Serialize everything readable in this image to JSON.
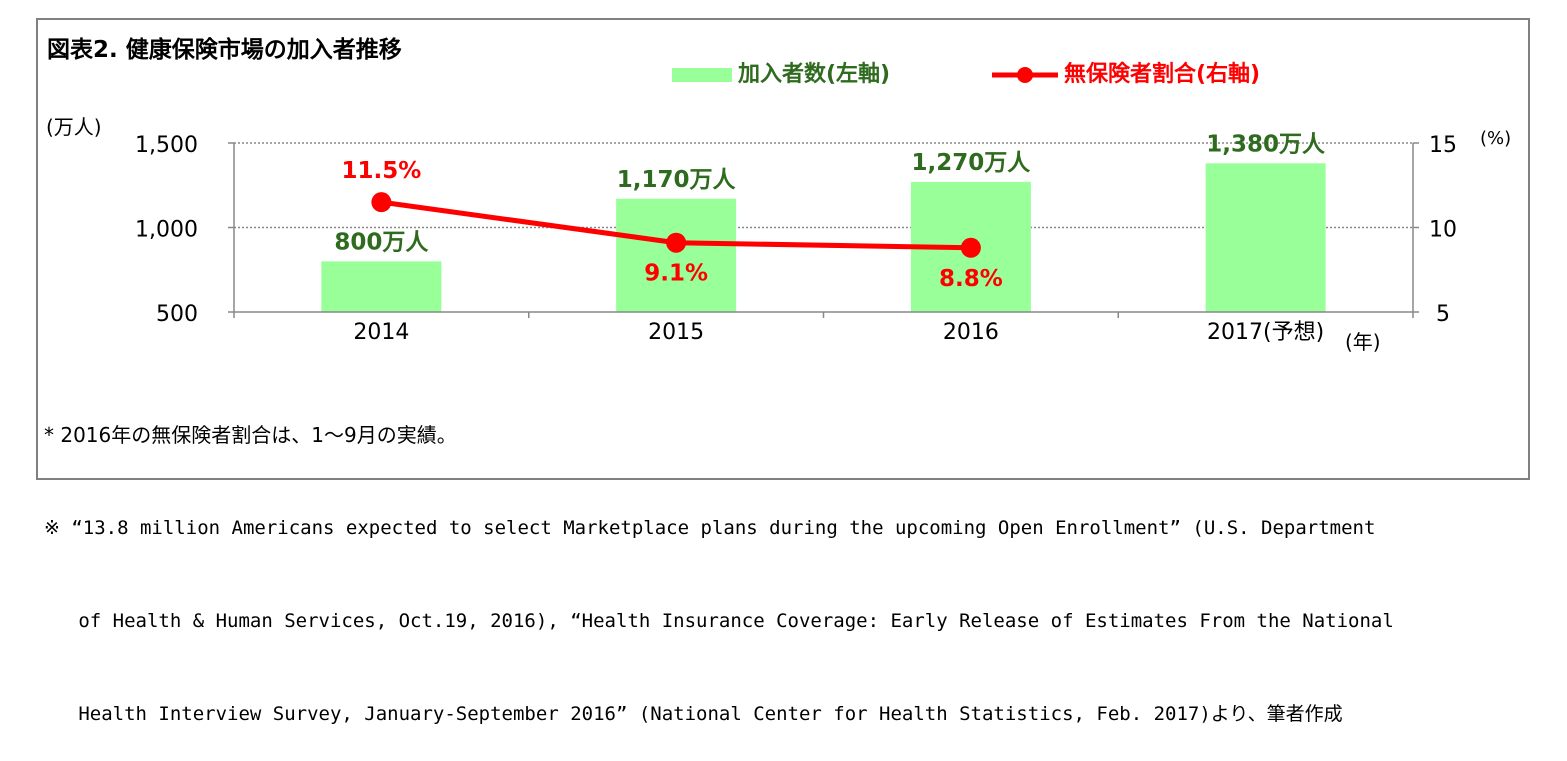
{
  "title": "図表2. 健康保険市場の加入者推移",
  "legend": [
    {
      "label": "加入者数(左軸)",
      "color": "#99ff99",
      "type": "bar"
    },
    {
      "label": "無保険者割合(右軸)",
      "color": "#ff0000",
      "type": "line"
    }
  ],
  "chart_data": {
    "type": "bar+line",
    "categories": [
      "2014",
      "2015",
      "2016",
      "2017(予想)"
    ],
    "x_unit": "(年)",
    "series": [
      {
        "name": "加入者数(左軸)",
        "type": "bar",
        "axis": "left",
        "values": [
          800,
          1170,
          1270,
          1380
        ],
        "labels": [
          "800万人",
          "1,170万人",
          "1,270万人",
          "1,380万人"
        ],
        "color": "#99ff99",
        "label_color": "#2e6b1e"
      },
      {
        "name": "無保険者割合(右軸)",
        "type": "line",
        "axis": "right",
        "values": [
          11.5,
          9.1,
          8.8,
          null
        ],
        "labels": [
          "11.5%",
          "9.1%",
          "8.8%",
          ""
        ],
        "color": "#ff0000"
      }
    ],
    "left_axis": {
      "unit": "(万人)",
      "ylim": [
        500,
        1500
      ],
      "ticks": [
        500,
        1000,
        1500
      ],
      "tick_labels": [
        "500",
        "1,000",
        "1,500"
      ]
    },
    "right_axis": {
      "unit": "(%)",
      "ylim": [
        5,
        15
      ],
      "ticks": [
        5,
        10,
        15
      ],
      "tick_labels": [
        "5",
        "10",
        "15"
      ]
    },
    "grid": "horizontal dotted",
    "legend_position": "top"
  },
  "notes": [
    "* 2016年の無保険者割合は、1～9月の実績。",
    "※ “13.8 million Americans expected to select Marketplace plans during the upcoming Open Enrollment” (U.S. Department",
    "   of Health & Human Services, Oct.19, 2016), “Health Insurance Coverage: Early Release of Estimates From the National",
    "   Health Interview Survey, January-September 2016” (National Center for Health Statistics, Feb. 2017)より、筆者作成"
  ]
}
